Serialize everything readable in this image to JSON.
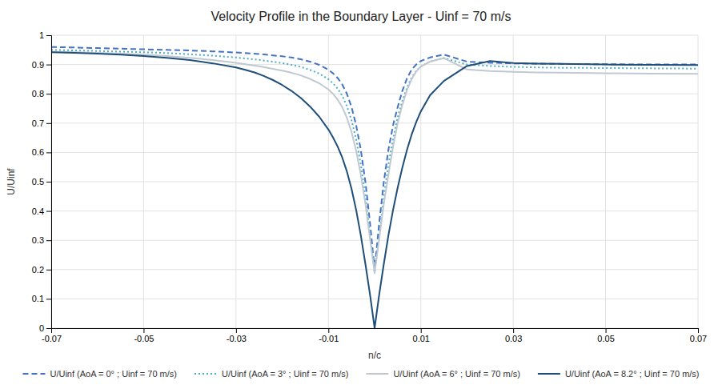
{
  "chart_data": {
    "type": "line",
    "title": "Velocity Profile in the Boundary Layer - Uinf = 70 m/s",
    "xlabel": "n/c",
    "ylabel": "U/Uinf",
    "xlim": [
      -0.07,
      0.07
    ],
    "ylim": [
      0,
      1
    ],
    "xticks": [
      -0.07,
      -0.05,
      -0.03,
      -0.01,
      0.01,
      0.03,
      0.05,
      0.07
    ],
    "yticks": [
      0,
      0.1,
      0.2,
      0.3,
      0.4,
      0.5,
      0.6,
      0.7,
      0.8,
      0.9,
      1
    ],
    "grid": true,
    "legend": "bottom",
    "series": [
      {
        "name": "U/Uinf (AoA = 0° ; Uinf = 70 m/s)",
        "color": "#4472C4",
        "line_style": "dashed",
        "x": [
          -0.07,
          -0.065,
          -0.06,
          -0.055,
          -0.05,
          -0.045,
          -0.04,
          -0.035,
          -0.03,
          -0.025,
          -0.02,
          -0.018,
          -0.016,
          -0.014,
          -0.012,
          -0.01,
          -0.009,
          -0.008,
          -0.007,
          -0.006,
          -0.005,
          -0.004,
          -0.003,
          -0.002,
          -0.001,
          0.0,
          0.001,
          0.002,
          0.003,
          0.004,
          0.005,
          0.006,
          0.007,
          0.008,
          0.009,
          0.01,
          0.012,
          0.015,
          0.02,
          0.025,
          0.03,
          0.035,
          0.04,
          0.05,
          0.06,
          0.07
        ],
        "values": [
          0.96,
          0.958,
          0.956,
          0.954,
          0.952,
          0.95,
          0.948,
          0.945,
          0.941,
          0.936,
          0.928,
          0.924,
          0.918,
          0.91,
          0.899,
          0.882,
          0.87,
          0.854,
          0.832,
          0.8,
          0.755,
          0.693,
          0.61,
          0.5,
          0.36,
          0.2,
          0.36,
          0.5,
          0.61,
          0.693,
          0.755,
          0.81,
          0.852,
          0.882,
          0.9,
          0.912,
          0.924,
          0.934,
          0.91,
          0.906,
          0.904,
          0.903,
          0.902,
          0.901,
          0.9,
          0.9
        ]
      },
      {
        "name": "U/Uinf (AoA = 3° ; Uinf = 70 m/s)",
        "color": "#4BACC6",
        "line_style": "dotted",
        "x": [
          -0.07,
          -0.065,
          -0.06,
          -0.055,
          -0.05,
          -0.045,
          -0.04,
          -0.035,
          -0.03,
          -0.025,
          -0.02,
          -0.018,
          -0.016,
          -0.014,
          -0.012,
          -0.01,
          -0.009,
          -0.008,
          -0.007,
          -0.006,
          -0.005,
          -0.004,
          -0.003,
          -0.002,
          -0.001,
          0.0,
          0.001,
          0.002,
          0.003,
          0.004,
          0.005,
          0.006,
          0.007,
          0.008,
          0.009,
          0.01,
          0.012,
          0.015,
          0.02,
          0.025,
          0.03,
          0.035,
          0.04,
          0.05,
          0.06,
          0.07
        ],
        "values": [
          0.95,
          0.948,
          0.946,
          0.944,
          0.942,
          0.939,
          0.935,
          0.93,
          0.924,
          0.916,
          0.905,
          0.899,
          0.892,
          0.882,
          0.869,
          0.85,
          0.836,
          0.818,
          0.793,
          0.758,
          0.71,
          0.645,
          0.56,
          0.45,
          0.318,
          0.19,
          0.318,
          0.45,
          0.56,
          0.645,
          0.72,
          0.775,
          0.82,
          0.855,
          0.878,
          0.893,
          0.91,
          0.922,
          0.9,
          0.895,
          0.892,
          0.89,
          0.889,
          0.888,
          0.887,
          0.886
        ]
      },
      {
        "name": "U/Uinf (AoA = 6° ; Uinf = 70 m/s)",
        "color": "#C0C8D0",
        "line_style": "solid",
        "x": [
          -0.07,
          -0.065,
          -0.06,
          -0.055,
          -0.05,
          -0.045,
          -0.04,
          -0.035,
          -0.03,
          -0.025,
          -0.02,
          -0.018,
          -0.016,
          -0.014,
          -0.012,
          -0.01,
          -0.009,
          -0.008,
          -0.007,
          -0.006,
          -0.005,
          -0.004,
          -0.003,
          -0.002,
          -0.001,
          0.0,
          0.001,
          0.002,
          0.003,
          0.004,
          0.005,
          0.006,
          0.007,
          0.008,
          0.009,
          0.01,
          0.012,
          0.015,
          0.02,
          0.025,
          0.03,
          0.035,
          0.04,
          0.05,
          0.06,
          0.07
        ],
        "values": [
          0.944,
          0.942,
          0.94,
          0.937,
          0.934,
          0.929,
          0.923,
          0.915,
          0.906,
          0.894,
          0.879,
          0.872,
          0.863,
          0.851,
          0.836,
          0.815,
          0.8,
          0.78,
          0.754,
          0.718,
          0.67,
          0.606,
          0.525,
          0.425,
          0.306,
          0.188,
          0.306,
          0.425,
          0.525,
          0.62,
          0.7,
          0.762,
          0.812,
          0.85,
          0.876,
          0.893,
          0.91,
          0.922,
          0.883,
          0.878,
          0.875,
          0.873,
          0.872,
          0.87,
          0.869,
          0.868
        ]
      },
      {
        "name": "U/Uinf (AoA = 8.2° ; Uinf = 70 m/s)",
        "color": "#1F4E79",
        "line_style": "solid",
        "x": [
          -0.07,
          -0.065,
          -0.06,
          -0.055,
          -0.05,
          -0.045,
          -0.04,
          -0.035,
          -0.03,
          -0.028,
          -0.026,
          -0.024,
          -0.022,
          -0.02,
          -0.018,
          -0.016,
          -0.014,
          -0.012,
          -0.01,
          -0.009,
          -0.008,
          -0.007,
          -0.006,
          -0.005,
          -0.004,
          -0.003,
          -0.002,
          -0.001,
          0.0,
          0.001,
          0.002,
          0.003,
          0.004,
          0.005,
          0.006,
          0.007,
          0.008,
          0.009,
          0.01,
          0.012,
          0.015,
          0.02,
          0.025,
          0.03,
          0.035,
          0.04,
          0.05,
          0.06,
          0.07
        ],
        "values": [
          0.942,
          0.94,
          0.937,
          0.934,
          0.929,
          0.923,
          0.915,
          0.904,
          0.89,
          0.882,
          0.873,
          0.861,
          0.847,
          0.83,
          0.81,
          0.786,
          0.757,
          0.722,
          0.678,
          0.651,
          0.62,
          0.582,
          0.535,
          0.476,
          0.404,
          0.318,
          0.22,
          0.115,
          0.0,
          0.115,
          0.22,
          0.318,
          0.404,
          0.48,
          0.548,
          0.608,
          0.66,
          0.703,
          0.74,
          0.795,
          0.844,
          0.895,
          0.912,
          0.905,
          0.903,
          0.902,
          0.9,
          0.899,
          0.898
        ]
      }
    ]
  }
}
